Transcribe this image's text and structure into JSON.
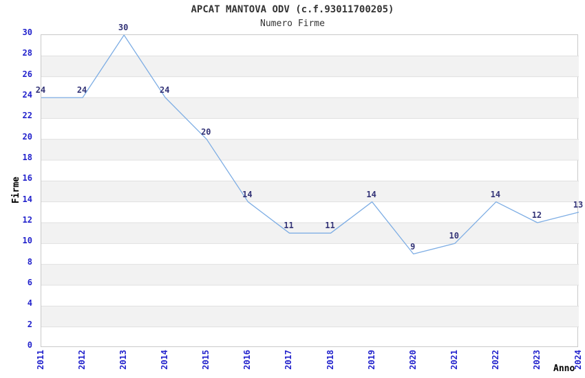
{
  "chart_data": {
    "type": "line",
    "title": "APCAT MANTOVA ODV (c.f.93011700205)",
    "subtitle": "Numero Firme",
    "xlabel": "Anno",
    "ylabel": "Firme",
    "categories": [
      "2011",
      "2012",
      "2013",
      "2014",
      "2015",
      "2016",
      "2017",
      "2018",
      "2019",
      "2020",
      "2021",
      "2022",
      "2023",
      "2024"
    ],
    "values": [
      24,
      24,
      30,
      24,
      20,
      14,
      11,
      11,
      14,
      9,
      10,
      14,
      12,
      13
    ],
    "ylim": [
      0,
      30
    ],
    "ytick_step": 2,
    "grid": "horizontal-bands",
    "legend": "none",
    "colors": {
      "line": "#7dade4",
      "data_label": "#333377",
      "tick_label": "#2222cc",
      "band_fill": "#f2f2f2",
      "gridline": "#e0e0e0",
      "plot_border": "#c9c9c9",
      "title_text": "#333333",
      "axis_label_text": "#000000",
      "background": "#ffffff"
    }
  }
}
